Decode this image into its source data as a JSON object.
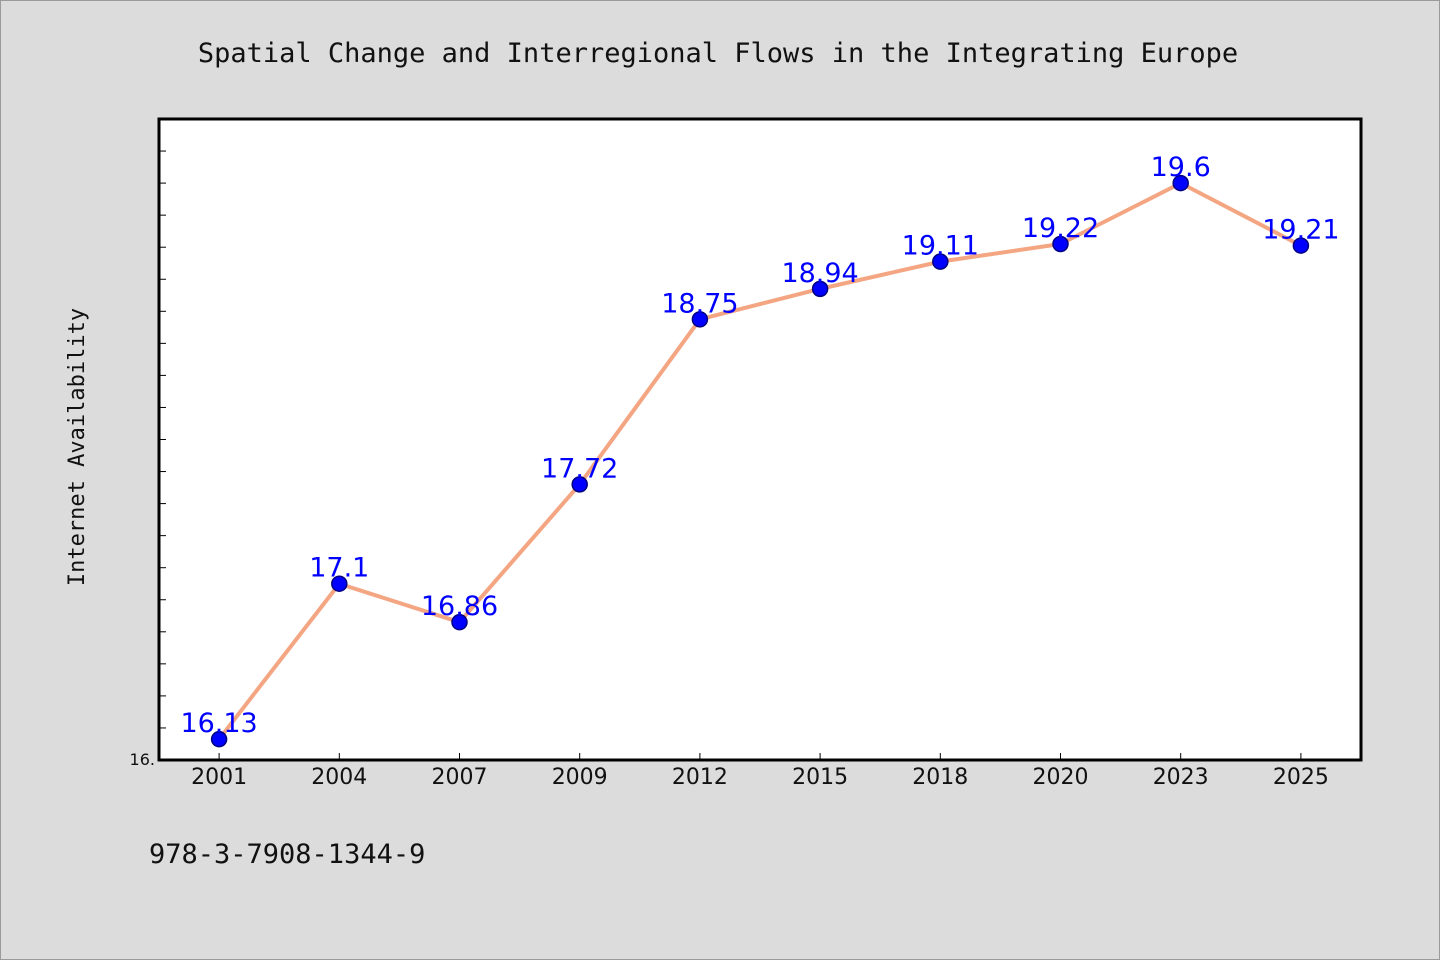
{
  "colors": {
    "background": "#dcdcdc",
    "plot_background": "#ffffff",
    "line": "#f4a582",
    "marker_fill": "#0000ff",
    "marker_edge": "#000080",
    "data_label": "#0000ff"
  },
  "footer_text": "978-3-7908-1344-9",
  "chart_data": {
    "type": "line",
    "title": "Spatial Change and Interregional Flows in the Integrating Europe",
    "xlabel": "",
    "ylabel": "Internet Availability",
    "categories": [
      "2001",
      "2004",
      "2007",
      "2009",
      "2012",
      "2015",
      "2018",
      "2020",
      "2023",
      "2025"
    ],
    "series": [
      {
        "values": [
          16.13,
          17.1,
          16.86,
          17.72,
          18.75,
          18.94,
          19.11,
          19.22,
          19.6,
          19.21
        ],
        "labels": [
          "16.13",
          "17.1",
          "16.86",
          "17.72",
          "18.75",
          "18.94",
          "19.11",
          "19.22",
          "19.6",
          "19.21"
        ]
      }
    ],
    "ylim": [
      16.0,
      20.0
    ],
    "y_tick_labels": [
      "16."
    ],
    "y_minor_tick_step": 0.2,
    "grid": false,
    "legend": "none"
  }
}
